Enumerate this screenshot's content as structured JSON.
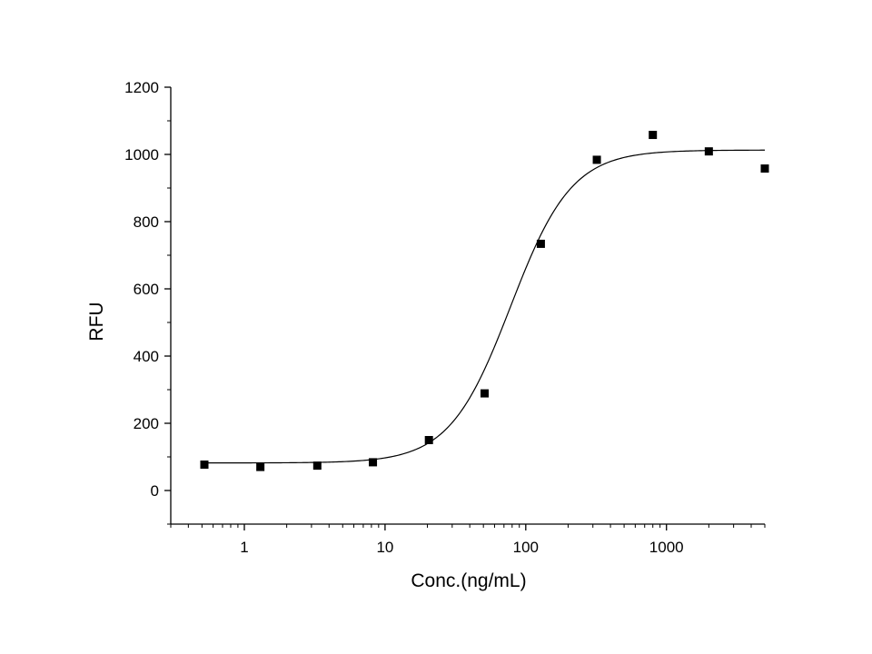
{
  "chart_data": {
    "type": "scatter",
    "xlabel": "Conc.(ng/mL)",
    "ylabel": "RFU",
    "x_scale": "log",
    "xlim": [
      0.3,
      5000
    ],
    "ylim": [
      -100,
      1200
    ],
    "x_ticks": [
      1,
      10,
      100,
      1000
    ],
    "x_tick_labels": [
      "1",
      "10",
      "100",
      "1000"
    ],
    "y_ticks": [
      0,
      200,
      400,
      600,
      800,
      1000,
      1200
    ],
    "y_tick_labels": [
      "0",
      "200",
      "400",
      "600",
      "800",
      "1000",
      "1200"
    ],
    "grid": false,
    "legend": "none",
    "marker_color": "#000000",
    "line_color": "#000000",
    "series": [
      {
        "type": "scatter",
        "x": [
          0.52,
          1.3,
          3.3,
          8.2,
          20.5,
          51,
          128,
          320,
          800,
          2000,
          5000
        ],
        "y": [
          77,
          70,
          74,
          84,
          150,
          289,
          734,
          984,
          1058,
          1009,
          958
        ]
      },
      {
        "type": "line",
        "fit": "four-parameter logistic",
        "bottom": 82,
        "top": 1013,
        "ec50": 78,
        "hill": 2.0,
        "x_range": [
          0.52,
          5000
        ]
      }
    ]
  }
}
